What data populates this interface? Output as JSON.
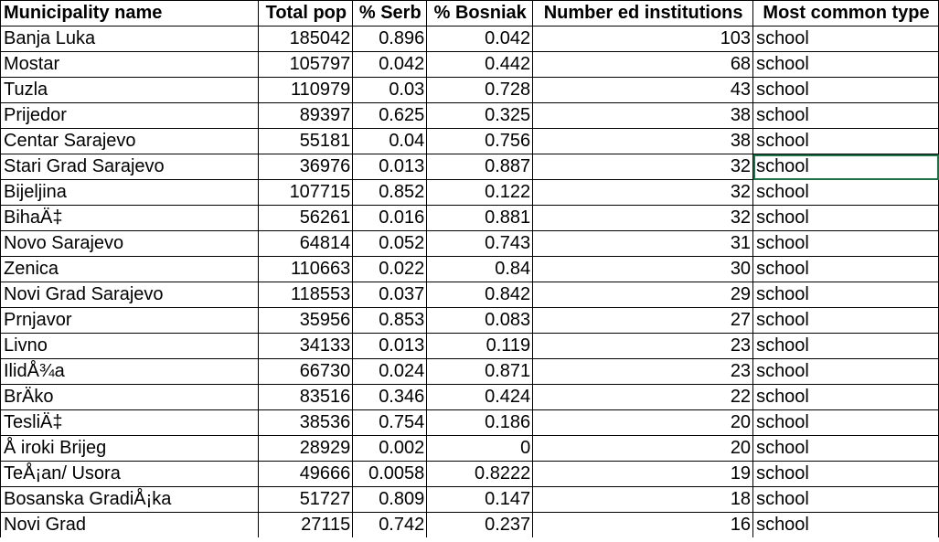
{
  "headers": [
    "Municipality name",
    "Total pop",
    "% Serb",
    "% Bosniak",
    "Number ed institutions",
    "Most common type"
  ],
  "rows": [
    [
      "Banja Luka",
      "185042",
      "0.896",
      "0.042",
      "103",
      "school"
    ],
    [
      "Mostar",
      "105797",
      "0.042",
      "0.442",
      "68",
      "school"
    ],
    [
      "Tuzla",
      "110979",
      "0.03",
      "0.728",
      "43",
      "school"
    ],
    [
      "Prijedor",
      "89397",
      "0.625",
      "0.325",
      "38",
      "school"
    ],
    [
      "Centar Sarajevo",
      "55181",
      "0.04",
      "0.756",
      "38",
      "school"
    ],
    [
      "Stari Grad Sarajevo",
      "36976",
      "0.013",
      "0.887",
      "32",
      "school"
    ],
    [
      "Bijeljina",
      "107715",
      "0.852",
      "0.122",
      "32",
      "school"
    ],
    [
      "BihaÄ‡",
      "56261",
      "0.016",
      "0.881",
      "32",
      "school"
    ],
    [
      "Novo Sarajevo",
      "64814",
      "0.052",
      "0.743",
      "31",
      "school"
    ],
    [
      "Zenica",
      "110663",
      "0.022",
      "0.84",
      "30",
      "school"
    ],
    [
      "Novi Grad Sarajevo",
      "118553",
      "0.037",
      "0.842",
      "29",
      "school"
    ],
    [
      "Prnjavor",
      "35956",
      "0.853",
      "0.083",
      "27",
      "school"
    ],
    [
      "Livno",
      "34133",
      "0.013",
      "0.119",
      "23",
      "school"
    ],
    [
      "IlidÅ¾a",
      "66730",
      "0.024",
      "0.871",
      "23",
      "school"
    ],
    [
      "BrÄko",
      "83516",
      "0.346",
      "0.424",
      "22",
      "school"
    ],
    [
      "TesliÄ‡",
      "38536",
      "0.754",
      "0.186",
      "20",
      "school"
    ],
    [
      "Å iroki Brijeg",
      "28929",
      "0.002",
      "0",
      "20",
      "school"
    ],
    [
      "TeÅ¡an/ Usora",
      "49666",
      "0.0058",
      "0.8222",
      "19",
      "school"
    ],
    [
      "Bosanska GradiÅ¡ka",
      "51727",
      "0.809",
      "0.147",
      "18",
      "school"
    ],
    [
      "Novi Grad",
      "27115",
      "0.742",
      "0.237",
      "16",
      "school"
    ]
  ],
  "selected_cell": {
    "row": 5,
    "col": 5
  }
}
